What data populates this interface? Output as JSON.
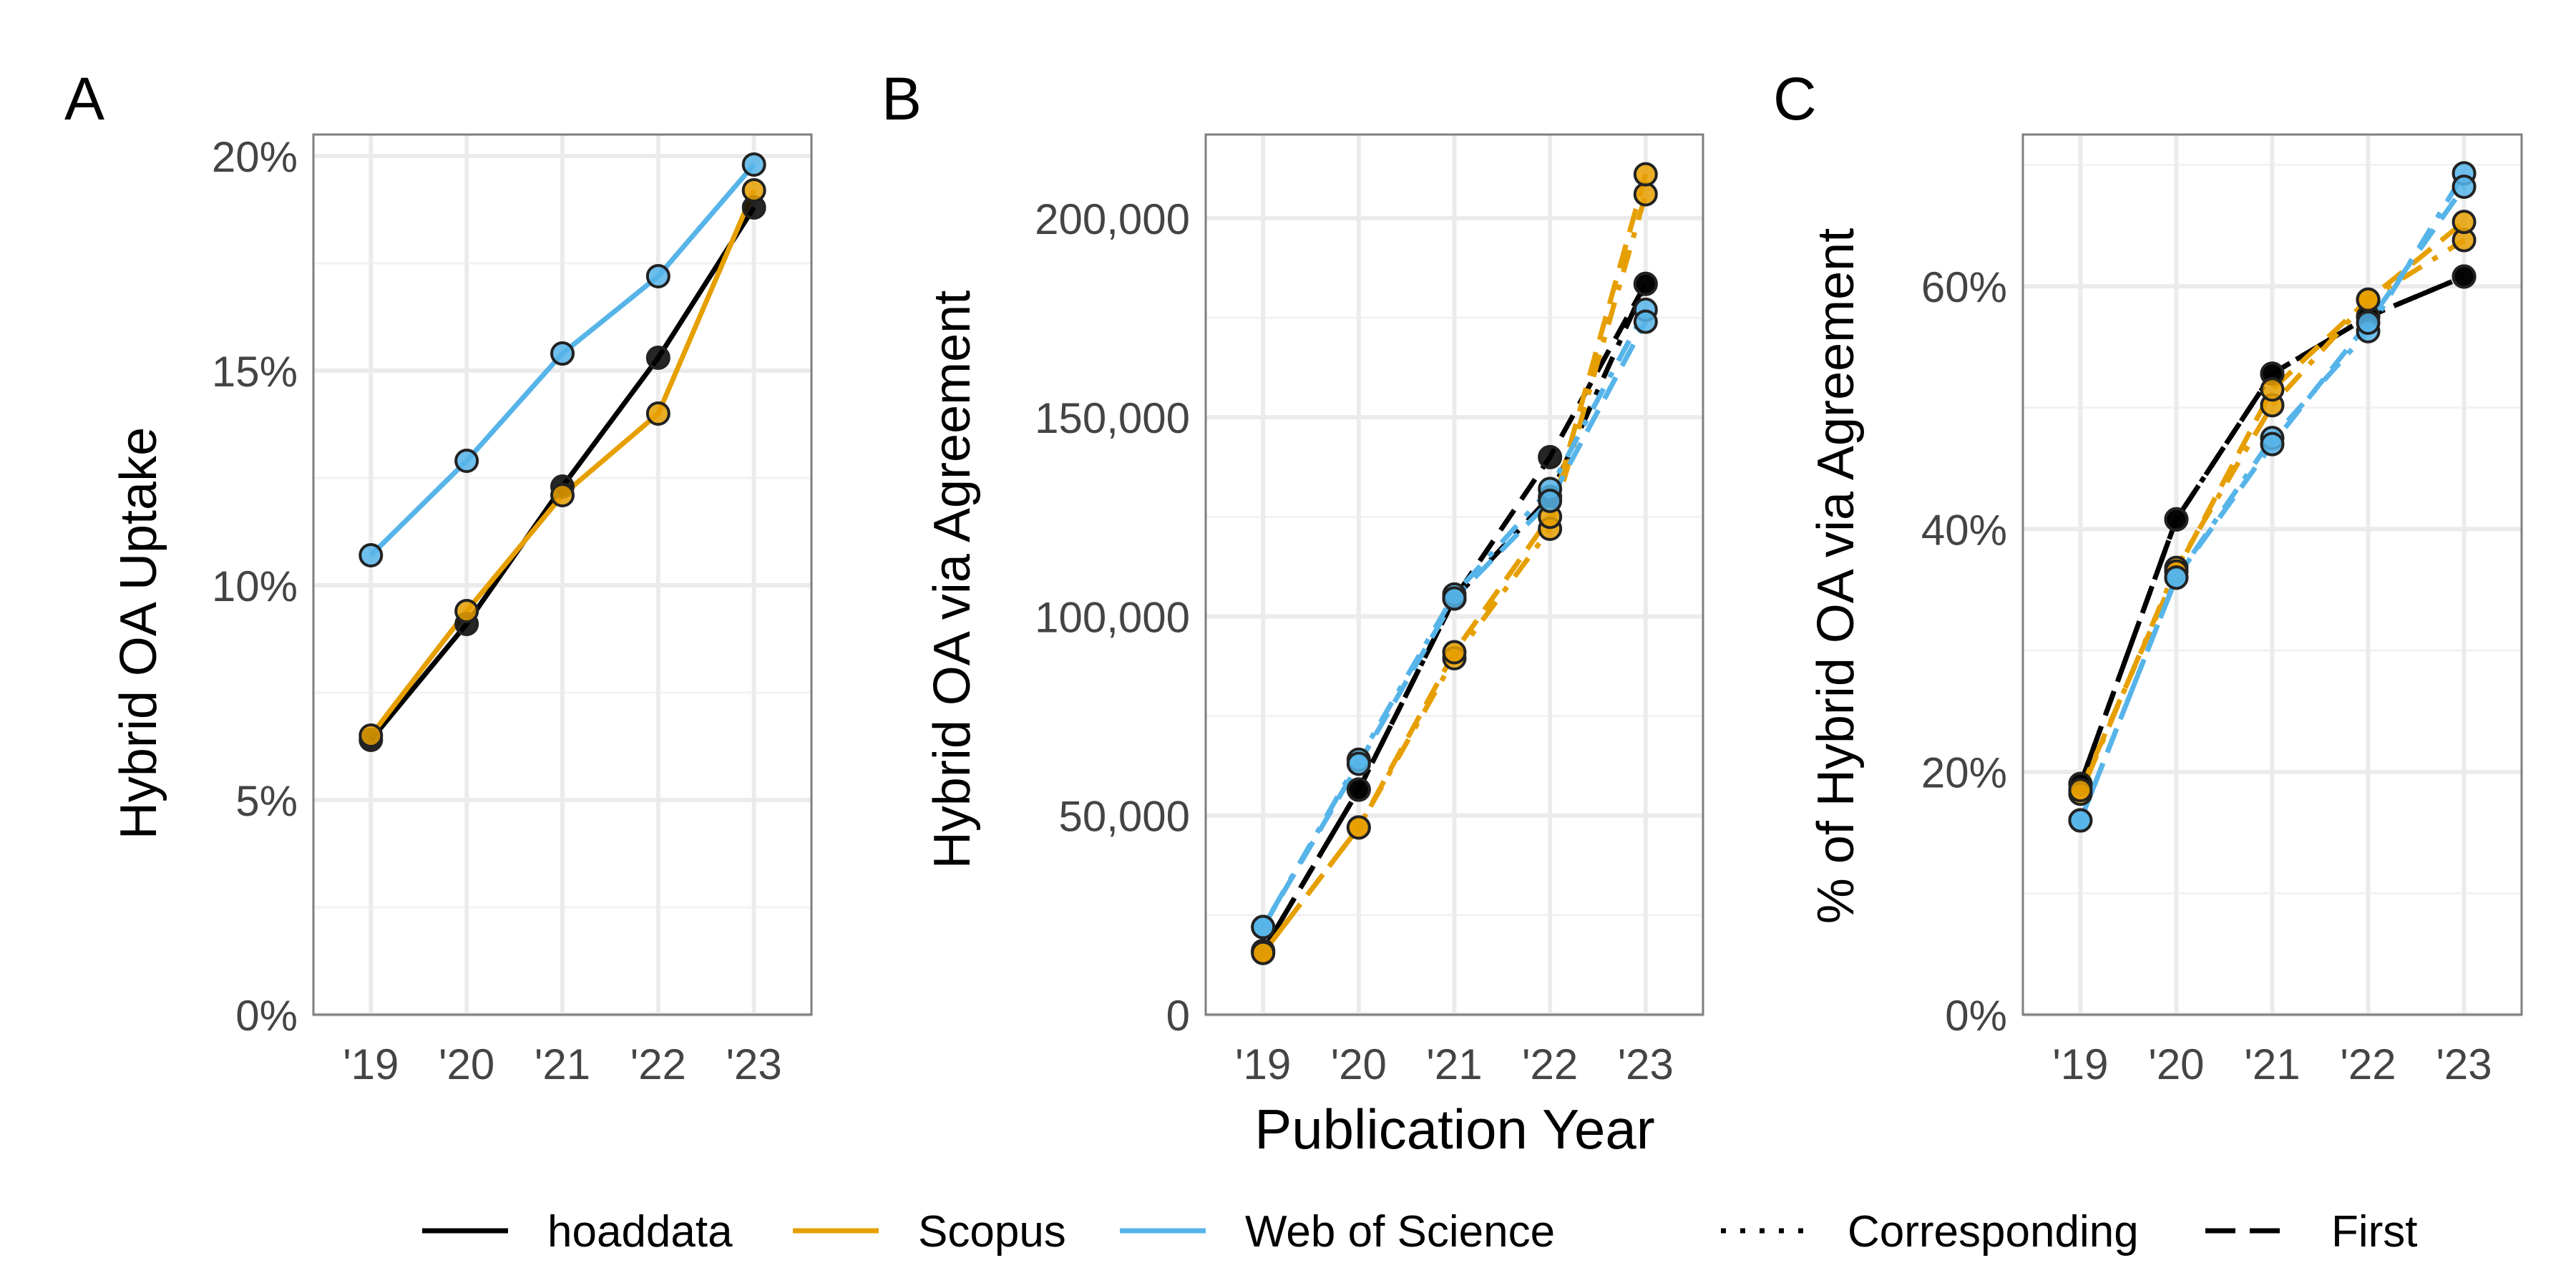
{
  "chart_data": [
    {
      "panel": "A",
      "type": "line",
      "title": "",
      "xlabel": "",
      "ylabel": "Hybrid OA Uptake",
      "categories": [
        "'19",
        "'20",
        "'21",
        "'22",
        "'23"
      ],
      "yticks": [
        0,
        5,
        10,
        15,
        20
      ],
      "ytick_labels": [
        "0%",
        "5%",
        "10%",
        "15%",
        "20%"
      ],
      "ylim": [
        0,
        20.5
      ],
      "series": [
        {
          "name": "hoaddata",
          "source": "hoaddata",
          "author": "all",
          "values": [
            6.4,
            9.1,
            12.3,
            15.3,
            18.8
          ]
        },
        {
          "name": "Scopus",
          "source": "Scopus",
          "author": "all",
          "values": [
            6.5,
            9.4,
            12.1,
            14.0,
            19.2
          ]
        },
        {
          "name": "Web of Science",
          "source": "Web of Science",
          "author": "all",
          "values": [
            10.7,
            12.9,
            15.4,
            17.2,
            19.8
          ]
        }
      ]
    },
    {
      "panel": "B",
      "type": "line",
      "title": "",
      "xlabel": "Publication Year",
      "ylabel": "Hybrid OA via Agreement",
      "categories": [
        "'19",
        "'20",
        "'21",
        "'22",
        "'23"
      ],
      "yticks": [
        0,
        50000,
        100000,
        150000,
        200000
      ],
      "ytick_labels": [
        "0",
        "50,000",
        "100,000",
        "150,000",
        "200,000"
      ],
      "ylim": [
        0,
        221000
      ],
      "series": [
        {
          "name": "hoaddata Corresponding",
          "source": "hoaddata",
          "author": "Corresponding",
          "values": [
            16000,
            56500,
            104500,
            130000,
            183500
          ]
        },
        {
          "name": "hoaddata First",
          "source": "hoaddata",
          "author": "First",
          "values": [
            16000,
            56500,
            104500,
            140000,
            183500
          ]
        },
        {
          "name": "Scopus Corresponding",
          "source": "Scopus",
          "author": "Corresponding",
          "values": [
            15500,
            47000,
            89500,
            122000,
            206000
          ]
        },
        {
          "name": "Scopus First",
          "source": "Scopus",
          "author": "First",
          "values": [
            15500,
            47000,
            91000,
            125000,
            211000
          ]
        },
        {
          "name": "Web of Science Corresponding",
          "source": "Web of Science",
          "author": "Corresponding",
          "values": [
            22000,
            64000,
            105500,
            132000,
            177000
          ]
        },
        {
          "name": "Web of Science First",
          "source": "Web of Science",
          "author": "First",
          "values": [
            22000,
            63000,
            104500,
            129000,
            174000
          ]
        }
      ]
    },
    {
      "panel": "C",
      "type": "line",
      "title": "",
      "xlabel": "",
      "ylabel": "% of Hybrid OA via Agreement",
      "categories": [
        "'19",
        "'20",
        "'21",
        "'22",
        "'23"
      ],
      "yticks": [
        0,
        20,
        40,
        60
      ],
      "ytick_labels": [
        "0%",
        "20%",
        "40%",
        "60%"
      ],
      "ylim": [
        0,
        72.5
      ],
      "series": [
        {
          "name": "hoaddata Corresponding",
          "source": "hoaddata",
          "author": "Corresponding",
          "values": [
            19.0,
            40.8,
            52.8,
            57.5,
            60.8
          ]
        },
        {
          "name": "hoaddata First",
          "source": "hoaddata",
          "author": "First",
          "values": [
            19.0,
            40.8,
            52.8,
            57.5,
            60.8
          ]
        },
        {
          "name": "Scopus Corresponding",
          "source": "Scopus",
          "author": "Corresponding",
          "values": [
            18.2,
            36.8,
            50.2,
            58.9,
            63.8
          ]
        },
        {
          "name": "Scopus First",
          "source": "Scopus",
          "author": "First",
          "values": [
            18.5,
            36.5,
            51.5,
            58.9,
            65.3
          ]
        },
        {
          "name": "Web of Science Corresponding",
          "source": "Web of Science",
          "author": "Corresponding",
          "values": [
            16.0,
            36.0,
            47.5,
            56.3,
            69.3
          ]
        },
        {
          "name": "Web of Science First",
          "source": "Web of Science",
          "author": "First",
          "values": [
            16.0,
            36.0,
            47.0,
            57.0,
            68.2
          ]
        }
      ]
    }
  ],
  "panels": [
    {
      "label": "A"
    },
    {
      "label": "B"
    },
    {
      "label": "C"
    }
  ],
  "legend": {
    "position": "bottom",
    "sources": [
      {
        "label": "hoaddata",
        "color": "#000000"
      },
      {
        "label": "Scopus",
        "color": "#E69F00"
      },
      {
        "label": "Web of Science",
        "color": "#56B4E9"
      }
    ],
    "authors": [
      {
        "label": "Corresponding",
        "dash": "dotted"
      },
      {
        "label": "First",
        "dash": "dashed"
      }
    ]
  },
  "colors": {
    "hoaddata": "#000000",
    "Scopus": "#E69F00",
    "Web of Science": "#56B4E9",
    "grid": "#EBEBEB",
    "panel_border": "#7F7F7F"
  }
}
